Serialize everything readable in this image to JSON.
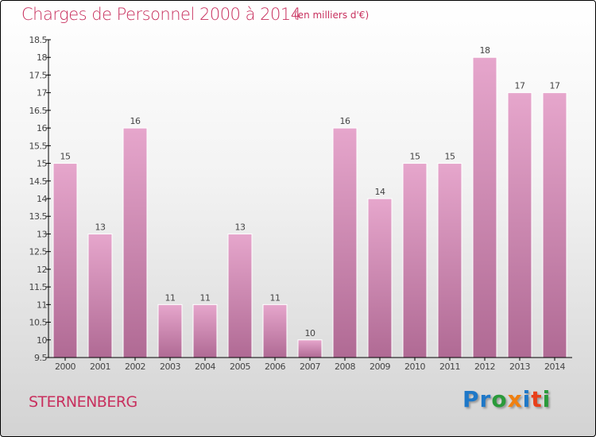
{
  "chart_data": {
    "type": "bar",
    "title": "Charges de Personnel 2000 à 2014",
    "subtitle": "(en milliers d'€)",
    "categories": [
      "2000",
      "2001",
      "2002",
      "2003",
      "2004",
      "2005",
      "2006",
      "2007",
      "2008",
      "2009",
      "2010",
      "2011",
      "2012",
      "2013",
      "2014"
    ],
    "values": [
      15,
      13,
      16,
      11,
      11,
      13,
      11,
      10,
      16,
      14,
      15,
      15,
      18,
      17,
      17
    ],
    "ylim": [
      9.5,
      18.5
    ],
    "yticks": [
      "9.5",
      "10",
      "10.5",
      "11",
      "11.5",
      "12",
      "12.5",
      "13",
      "13.5",
      "14",
      "14.5",
      "15",
      "15.5",
      "16",
      "16.5",
      "17",
      "17.5",
      "18",
      "18.5"
    ],
    "xlabel": "",
    "ylabel": "",
    "grid": false,
    "bar_color": "#d98fb8"
  },
  "commune": "STERNENBERG",
  "logo": {
    "text": "Proxiti",
    "colors": [
      "#1e78c8",
      "#1e78c8",
      "#2a9a3a",
      "#f08010",
      "#1e78c8",
      "#e8401a",
      "#2a9a3a"
    ]
  }
}
